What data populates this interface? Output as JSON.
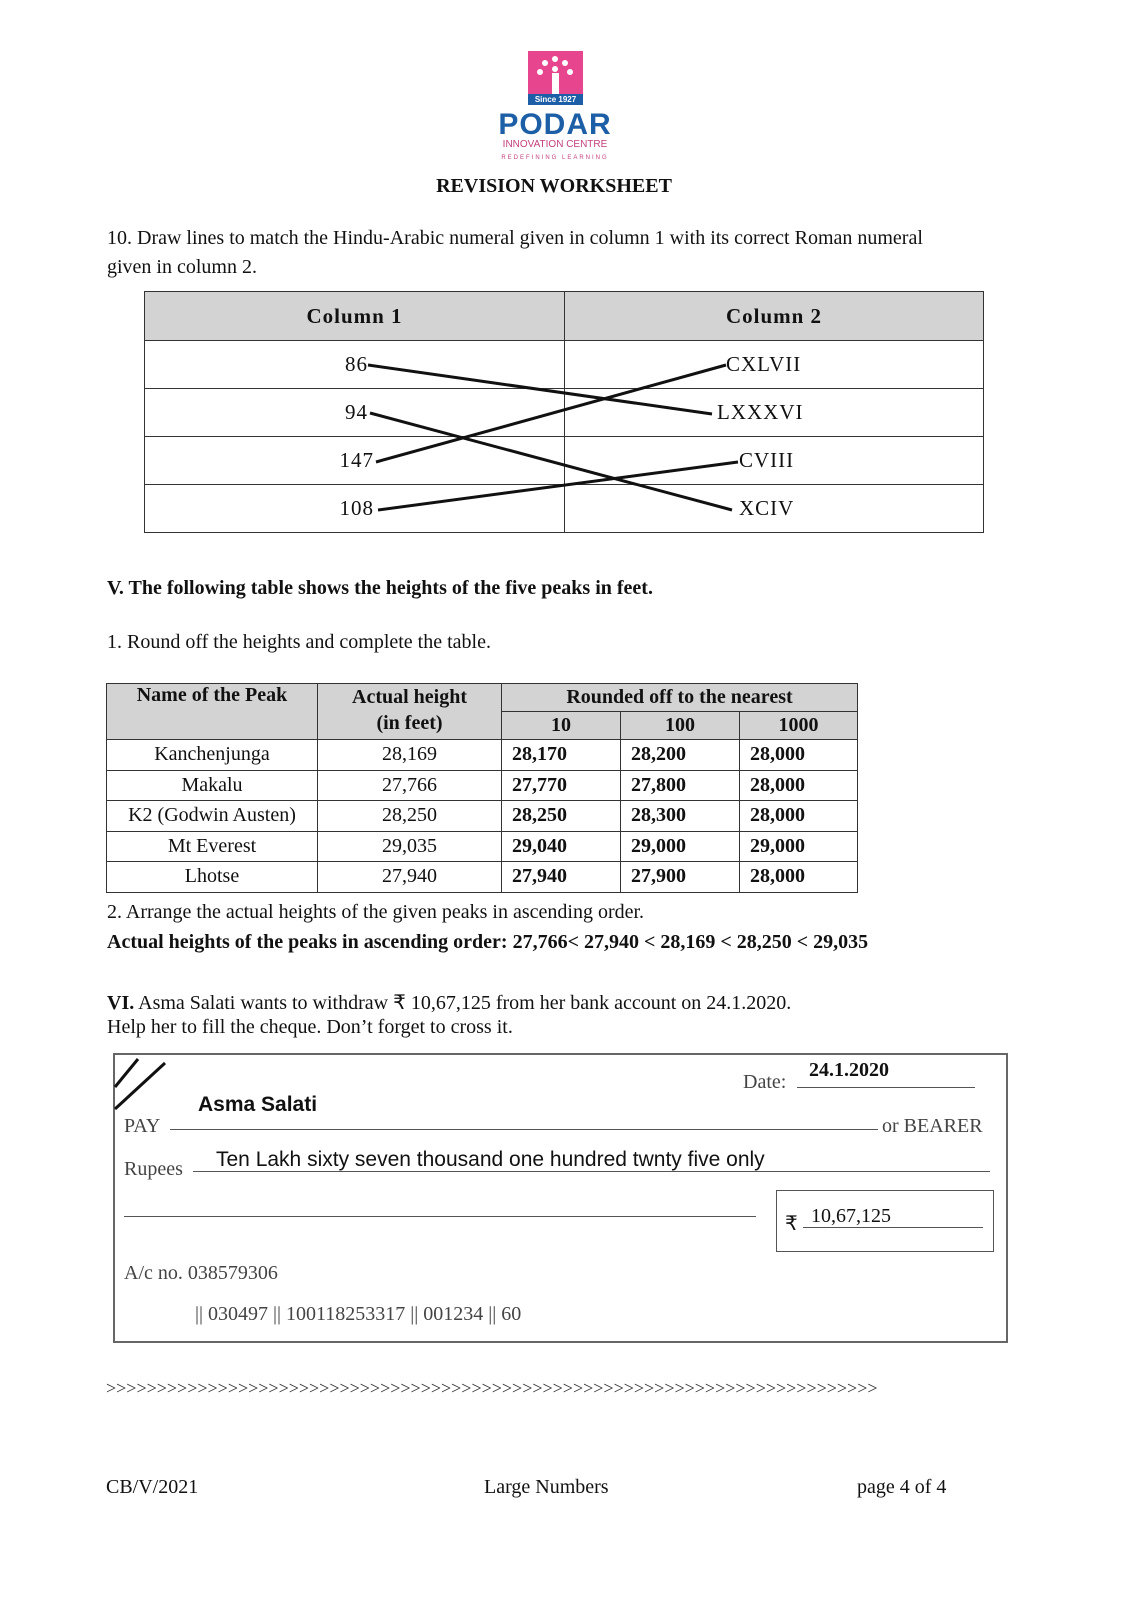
{
  "header": {
    "logo_since": "Since 1927",
    "logo_name": "PODAR",
    "logo_sub": "INNOVATION CENTRE",
    "logo_tag": "REDEFINING LEARNING",
    "title": "REVISION WORKSHEET"
  },
  "q10": {
    "text_line1": "10. Draw lines to match the Hindu-Arabic numeral given in column 1 with its correct Roman numeral",
    "text_line2": "given in column 2.",
    "col1_header": "Column 1",
    "col2_header": "Column 2",
    "col1": [
      "86",
      "94",
      "147",
      "108"
    ],
    "col2": [
      "CXLVII",
      "LXXXVI",
      "CVIII",
      "XCIV"
    ],
    "matches": [
      [
        "86",
        "LXXXVI"
      ],
      [
        "94",
        "XCIV"
      ],
      [
        "147",
        "CXLVII"
      ],
      [
        "108",
        "CVIII"
      ]
    ]
  },
  "sectionV": {
    "title": "V. The following table shows the heights of the five peaks in feet.",
    "q1": "1. Round off the heights and complete the table.",
    "headers": {
      "name": "Name of the Peak",
      "actual_1": "Actual height",
      "actual_2": "(in feet)",
      "rounded": "Rounded off to the nearest",
      "r10": "10",
      "r100": "100",
      "r1000": "1000"
    },
    "rows": [
      [
        "Kanchenjunga",
        "28,169",
        "28,170",
        "28,200",
        "28,000"
      ],
      [
        "Makalu",
        "27,766",
        "27,770",
        "27,800",
        "28,000"
      ],
      [
        "K2 (Godwin Austen)",
        "28,250",
        "28,250",
        "28,300",
        "28,000"
      ],
      [
        "Mt Everest",
        "29,035",
        "29,040",
        "29,000",
        "29,000"
      ],
      [
        "Lhotse",
        "27,940",
        "27,940",
        "27,900",
        "28,000"
      ]
    ],
    "q2": "2. Arrange the actual heights of the given peaks in ascending order.",
    "answer": "Actual heights of the peaks in ascending order: 27,766< 27,940 < 28,169 < 28,250 < 29,035"
  },
  "sectionVI": {
    "label": "VI.",
    "text_line1": " Asma Salati wants to withdraw ₹ 10,67,125 from her bank account on 24.1.2020.",
    "text_line2": "Help her to fill the cheque. Don’t forget to cross it."
  },
  "cheque": {
    "date_label": "Date:",
    "date": "24.1.2020",
    "payee": "Asma Salati",
    "pay_label": "PAY",
    "bearer_label": "or BEARER",
    "rupees_label": "Rupees",
    "amount_words": "Ten Lakh sixty seven thousand one hundred twnty five only",
    "rupee_symbol": "₹",
    "amount": "10,67,125",
    "account": "A/c no. 038579306",
    "micr": "|| 030497 || 100118253317 || 001234 || 60"
  },
  "separator": ">>>>>>>>>>>>>>>>>>>>>>>>>>>>>>>>>>>>>>>>>>>>>>>>>>>>>>>>>>>>>>>>>>>>>>>>>>>>",
  "footer": {
    "left": "CB/V/2021",
    "center": "Large Numbers",
    "right": "page 4 of 4"
  }
}
